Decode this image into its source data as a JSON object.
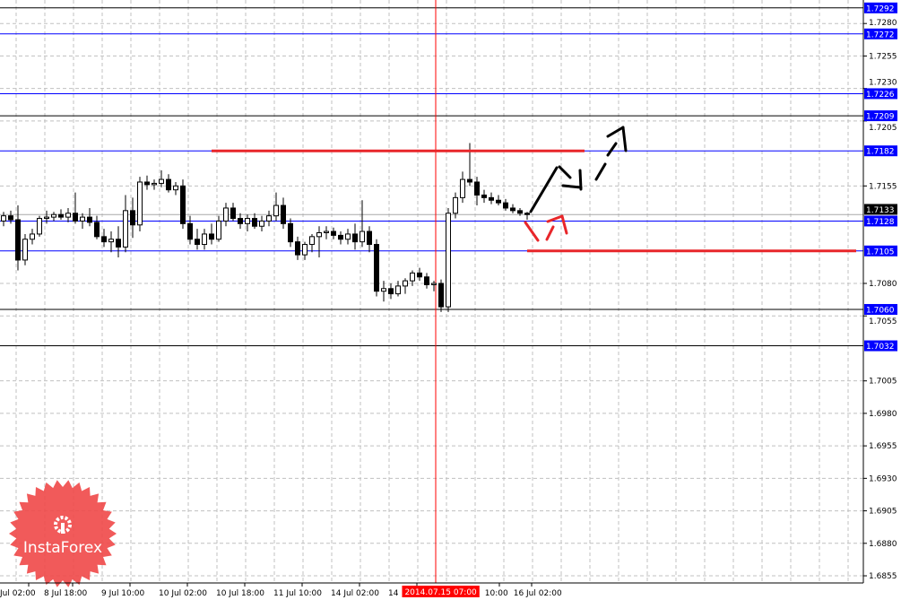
{
  "chart_data": {
    "type": "candlestick",
    "symbol_timeframe": "",
    "y_axis": {
      "ticks": [
        "1.7280",
        "1.7255",
        "1.7230",
        "1.7205",
        "1.7155",
        "1.7080",
        "1.7055",
        "1.7005",
        "1.6980",
        "1.6955",
        "1.6930",
        "1.6905",
        "1.6880",
        "1.6855"
      ],
      "range": [
        1.6845,
        1.7298
      ]
    },
    "x_axis": {
      "labels": [
        "Jul 02:00",
        "8 Jul 18:00",
        "9 Jul 10:00",
        "10 Jul 02:00",
        "10 Jul 18:00",
        "11 Jul 10:00",
        "14 Jul 02:00",
        "14",
        "10:00",
        "16 Jul 02:00"
      ],
      "crosshair_label": "2014.07.15 07:00"
    },
    "grid": true,
    "current_price": "1.7133",
    "level_lines": [
      {
        "price": "1.7292",
        "color": "#000000"
      },
      {
        "price": "1.7272",
        "color": "#0000ff"
      },
      {
        "price": "1.7226",
        "color": "#0000ff"
      },
      {
        "price": "1.7209",
        "color": "#000000"
      },
      {
        "price": "1.7182",
        "color": "#0000ff"
      },
      {
        "price": "1.7128",
        "color": "#0000ff"
      },
      {
        "price": "1.7105",
        "color": "#0000ff"
      },
      {
        "price": "1.7060",
        "color": "#000000"
      },
      {
        "price": "1.7032",
        "color": "#000000"
      }
    ],
    "resistance_line": {
      "price": 1.7182,
      "color": "#e8262a"
    },
    "support_line": {
      "price": 1.7105,
      "color": "#e8262a"
    },
    "crosshair_color": "#ff0000",
    "ohlc": [
      [
        1.7128,
        1.7135,
        1.7124,
        1.7132
      ],
      [
        1.7132,
        1.7136,
        1.7126,
        1.7129
      ],
      [
        1.7129,
        1.714,
        1.709,
        1.7098
      ],
      [
        1.7098,
        1.7118,
        1.7094,
        1.7114
      ],
      [
        1.7114,
        1.7122,
        1.711,
        1.7118
      ],
      [
        1.7118,
        1.7132,
        1.7116,
        1.713
      ],
      [
        1.713,
        1.7136,
        1.7126,
        1.7131
      ],
      [
        1.7131,
        1.7135,
        1.7128,
        1.7133
      ],
      [
        1.7133,
        1.7137,
        1.7129,
        1.7131
      ],
      [
        1.7131,
        1.7138,
        1.7127,
        1.7134
      ],
      [
        1.7134,
        1.715,
        1.7126,
        1.7128
      ],
      [
        1.7128,
        1.7134,
        1.7122,
        1.7131
      ],
      [
        1.7131,
        1.7138,
        1.7124,
        1.7127
      ],
      [
        1.7127,
        1.7132,
        1.7114,
        1.7116
      ],
      [
        1.7116,
        1.7122,
        1.7108,
        1.7112
      ],
      [
        1.7112,
        1.712,
        1.7104,
        1.7114
      ],
      [
        1.7114,
        1.7124,
        1.71,
        1.7108
      ],
      [
        1.7108,
        1.7148,
        1.7104,
        1.7136
      ],
      [
        1.7136,
        1.7146,
        1.7115,
        1.7125
      ],
      [
        1.7125,
        1.7162,
        1.712,
        1.7158
      ],
      [
        1.7158,
        1.7163,
        1.7152,
        1.7156
      ],
      [
        1.7156,
        1.716,
        1.7152,
        1.7157
      ],
      [
        1.7157,
        1.7167,
        1.7154,
        1.716
      ],
      [
        1.716,
        1.7164,
        1.715,
        1.7152
      ],
      [
        1.7152,
        1.7158,
        1.7148,
        1.7155
      ],
      [
        1.7155,
        1.716,
        1.7122,
        1.7126
      ],
      [
        1.7126,
        1.7132,
        1.711,
        1.7114
      ],
      [
        1.7114,
        1.7122,
        1.7106,
        1.711
      ],
      [
        1.711,
        1.7122,
        1.7106,
        1.7118
      ],
      [
        1.7118,
        1.7126,
        1.711,
        1.7114
      ],
      [
        1.7114,
        1.7132,
        1.7112,
        1.7128
      ],
      [
        1.7128,
        1.7142,
        1.7124,
        1.7138
      ],
      [
        1.7138,
        1.7142,
        1.7128,
        1.713
      ],
      [
        1.713,
        1.7134,
        1.7122,
        1.7126
      ],
      [
        1.7126,
        1.7133,
        1.712,
        1.713
      ],
      [
        1.713,
        1.7134,
        1.7122,
        1.7124
      ],
      [
        1.7124,
        1.7132,
        1.712,
        1.7128
      ],
      [
        1.7128,
        1.7136,
        1.7124,
        1.7132
      ],
      [
        1.7132,
        1.715,
        1.7128,
        1.714
      ],
      [
        1.714,
        1.7146,
        1.7122,
        1.7126
      ],
      [
        1.7126,
        1.713,
        1.7108,
        1.7112
      ],
      [
        1.7112,
        1.7116,
        1.7098,
        1.7102
      ],
      [
        1.7102,
        1.7112,
        1.7098,
        1.711
      ],
      [
        1.711,
        1.7118,
        1.7104,
        1.7116
      ],
      [
        1.7116,
        1.7124,
        1.71,
        1.7119
      ],
      [
        1.7119,
        1.7124,
        1.7114,
        1.712
      ],
      [
        1.712,
        1.7123,
        1.7114,
        1.7117
      ],
      [
        1.7117,
        1.712,
        1.711,
        1.7114
      ],
      [
        1.7114,
        1.7122,
        1.711,
        1.7118
      ],
      [
        1.7118,
        1.7126,
        1.7106,
        1.7112
      ],
      [
        1.7112,
        1.7144,
        1.7108,
        1.712
      ],
      [
        1.712,
        1.7124,
        1.7104,
        1.711
      ],
      [
        1.711,
        1.7114,
        1.707,
        1.7074
      ],
      [
        1.7074,
        1.7082,
        1.7066,
        1.7076
      ],
      [
        1.7076,
        1.708,
        1.7068,
        1.7072
      ],
      [
        1.7072,
        1.7082,
        1.707,
        1.7078
      ],
      [
        1.7078,
        1.7084,
        1.7072,
        1.7082
      ],
      [
        1.7082,
        1.709,
        1.7078,
        1.7088
      ],
      [
        1.7088,
        1.7092,
        1.7082,
        1.7085
      ],
      [
        1.7085,
        1.7088,
        1.7076,
        1.7079
      ],
      [
        1.7079,
        1.7082,
        1.7074,
        1.708
      ],
      [
        1.708,
        1.7083,
        1.7058,
        1.7062
      ],
      [
        1.7062,
        1.7138,
        1.7058,
        1.7134
      ],
      [
        1.7134,
        1.715,
        1.713,
        1.7146
      ],
      [
        1.7146,
        1.7166,
        1.7142,
        1.716
      ],
      [
        1.716,
        1.7188,
        1.7155,
        1.7158
      ],
      [
        1.7158,
        1.7162,
        1.714,
        1.7148
      ],
      [
        1.7148,
        1.7152,
        1.7142,
        1.7146
      ],
      [
        1.7146,
        1.715,
        1.7141,
        1.7144
      ],
      [
        1.7144,
        1.7148,
        1.714,
        1.7142
      ],
      [
        1.7142,
        1.7145,
        1.7136,
        1.7138
      ],
      [
        1.7138,
        1.7141,
        1.7134,
        1.7136
      ],
      [
        1.7136,
        1.7138,
        1.7132,
        1.7134
      ],
      [
        1.7134,
        1.7135,
        1.7129,
        1.7133
      ]
    ],
    "forecast_arrows": [
      {
        "style": "solid",
        "color": "#000000"
      },
      {
        "style": "dashed",
        "color": "#000000"
      },
      {
        "style": "dashed",
        "color": "#e8262a"
      }
    ]
  },
  "logo": {
    "text": "InstaForex",
    "color": "#f04848"
  }
}
